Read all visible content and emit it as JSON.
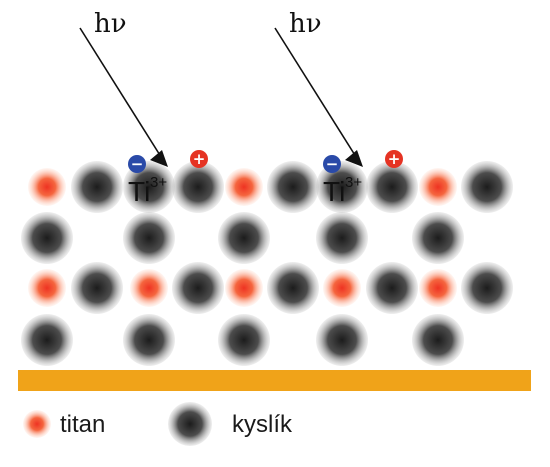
{
  "photon_label": "hν",
  "defect_label": "Ti",
  "defect_charge": "3+",
  "legend": {
    "titan": "titan",
    "kyslik": "kyslík"
  },
  "colors": {
    "titan_center": "#ee3322",
    "titan_edge": "#ffb399",
    "oxygen_center": "#1c1c1c",
    "oxygen_edge": "#9a9a9a",
    "substrate": "#f0a319",
    "electron": "#2a4aa8",
    "hole": "#e53323",
    "line": "#111111"
  },
  "charges": {
    "electron": "−",
    "hole": "+"
  }
}
